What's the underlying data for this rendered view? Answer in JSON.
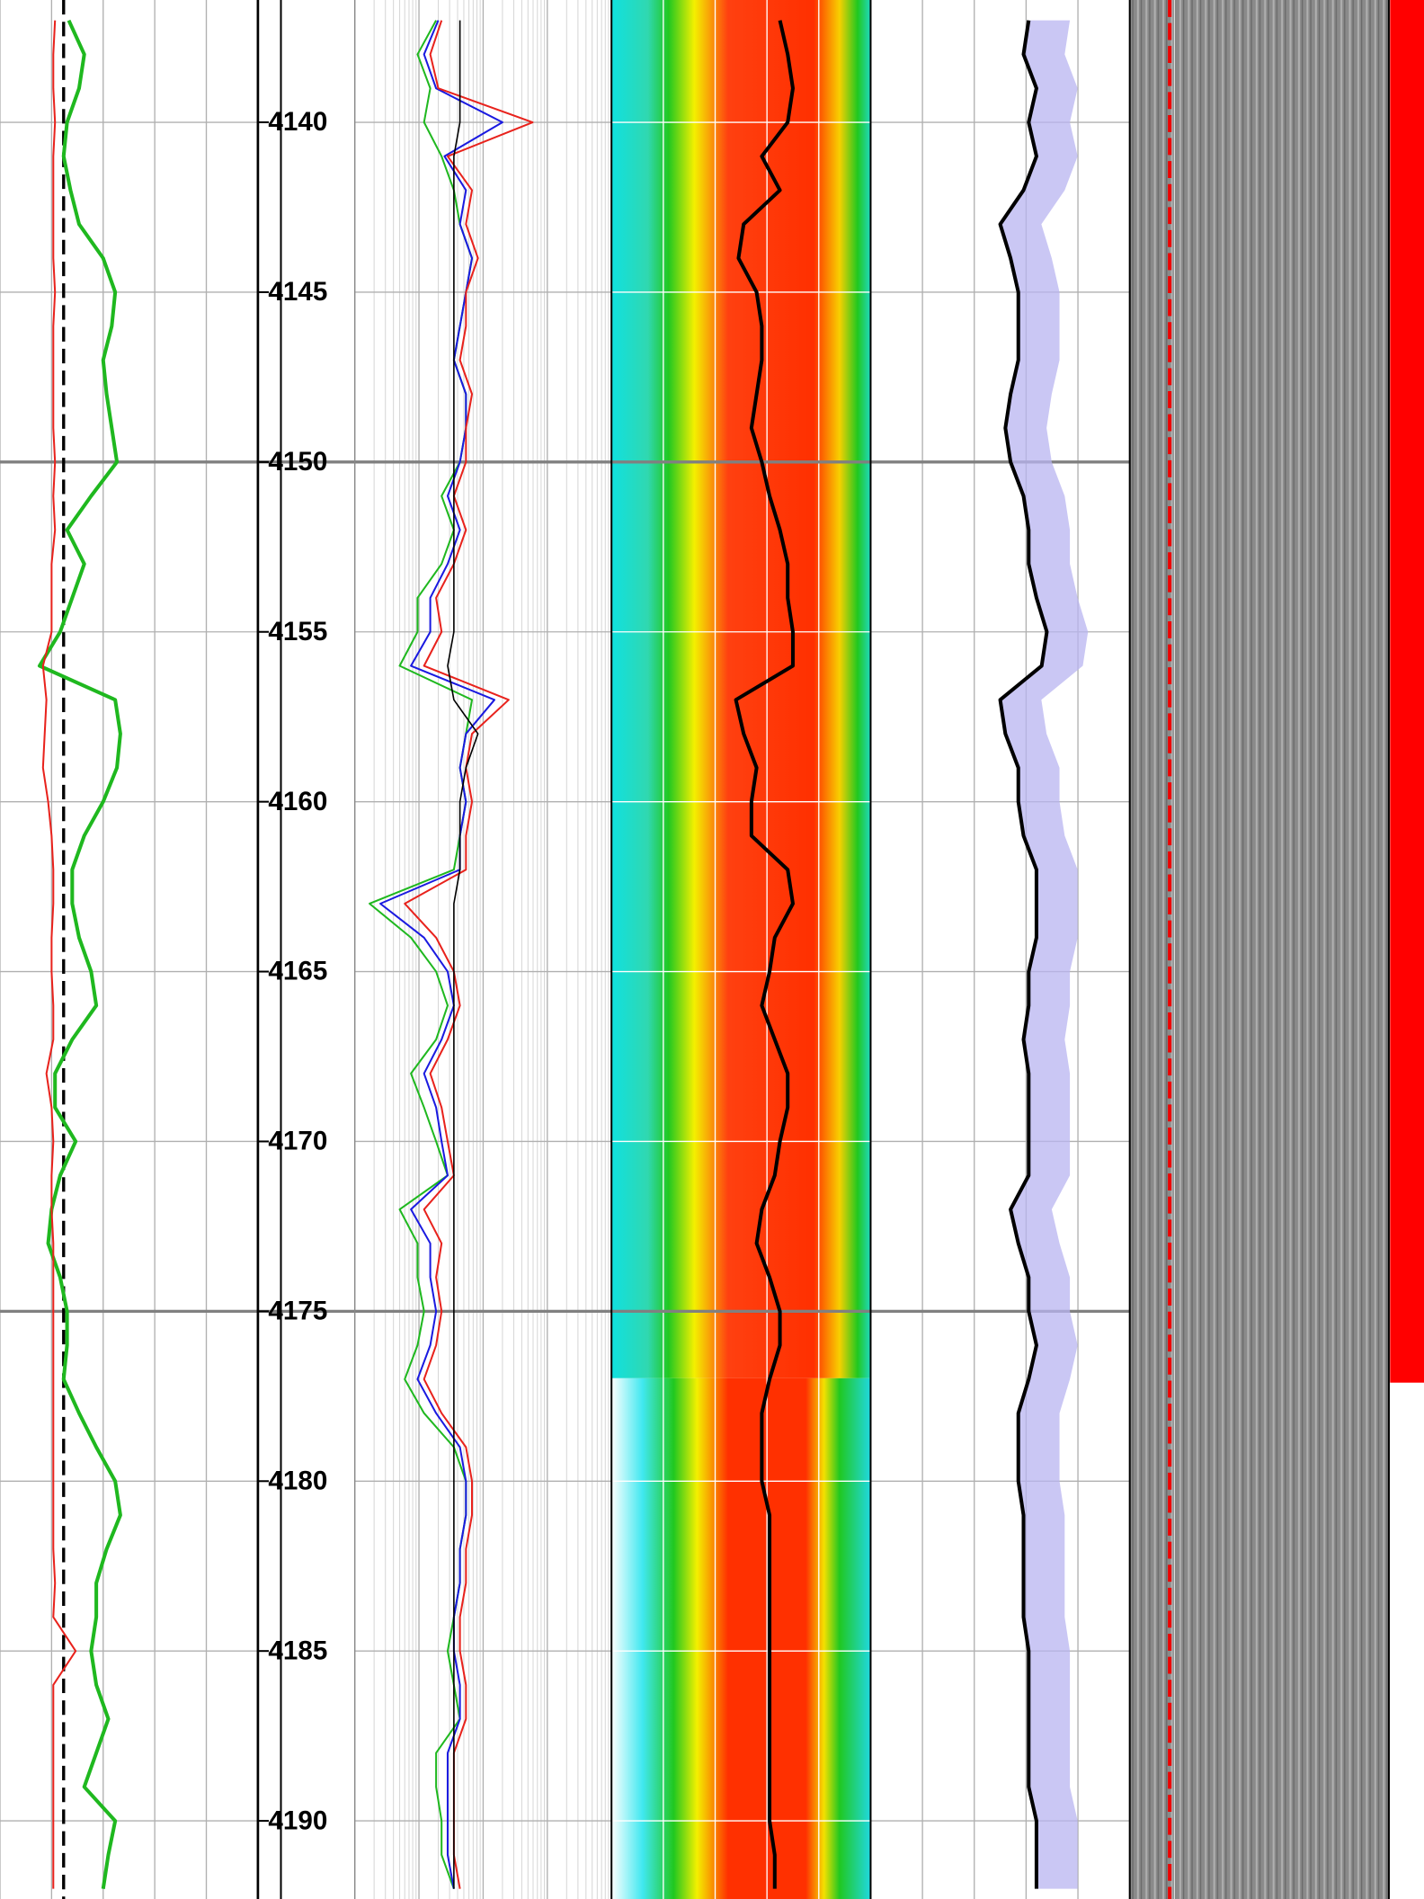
{
  "chart_data": {
    "type": "well-log",
    "ylim": [
      4136.4,
      4192.3
    ],
    "yticks": [
      4140,
      4145,
      4150,
      4155,
      4160,
      4165,
      4170,
      4175,
      4180,
      4185,
      4190
    ],
    "major_lines": [
      4150,
      4175
    ],
    "depths": [
      4137,
      4138,
      4139,
      4140,
      4141,
      4142,
      4143,
      4144,
      4145,
      4146,
      4147,
      4148,
      4149,
      4150,
      4151,
      4152,
      4153,
      4154,
      4155,
      4156,
      4157,
      4158,
      4159,
      4160,
      4161,
      4162,
      4163,
      4164,
      4165,
      4166,
      4167,
      4168,
      4169,
      4170,
      4171,
      4172,
      4173,
      4174,
      4175,
      4176,
      4177,
      4178,
      4179,
      4180,
      4181,
      4182,
      4183,
      4184,
      4185,
      4186,
      4187,
      4188,
      4189,
      4190,
      4191,
      4192
    ],
    "tracks": [
      {
        "scale": "linear",
        "xlim": [
          0,
          150
        ],
        "xticks": [
          0,
          30,
          60,
          90,
          120,
          150
        ],
        "cutoff": 37,
        "series": [
          {
            "color": "#1fb81f",
            "width": 3,
            "values": [
              40,
              49,
              46,
              39,
              37,
              41,
              46,
              60,
              67,
              65,
              60,
              62,
              65,
              68,
              53,
              39,
              49,
              42,
              35,
              23,
              67,
              70,
              68,
              60,
              49,
              42,
              42,
              46,
              53,
              56,
              42,
              32,
              32,
              44,
              35,
              30,
              28,
              35,
              39,
              39,
              37,
              46,
              56,
              67,
              70,
              62,
              56,
              56,
              53,
              56,
              63,
              56,
              49,
              67,
              63,
              60
            ]
          },
          {
            "color": "#e8221c",
            "width": 1.5,
            "values": [
              32,
              31,
              31,
              32,
              31,
              31,
              31,
              31,
              32,
              31,
              31,
              31,
              31,
              32,
              31,
              32,
              30,
              30,
              30,
              25,
              27,
              26,
              25,
              28,
              30,
              31,
              31,
              30,
              30,
              31,
              31,
              27,
              30,
              31,
              30,
              30,
              31,
              31,
              31,
              31,
              31,
              31,
              31,
              31,
              31,
              31,
              32,
              31,
              44,
              31,
              31,
              31,
              31,
              31,
              31,
              31
            ]
          }
        ]
      },
      {
        "scale": "log",
        "xlim": [
          0.2,
          2000
        ],
        "xticks": [
          0.2,
          2,
          20,
          200,
          2000
        ],
        "series": [
          {
            "color": "#1fb81f",
            "width": 1.5,
            "values": [
              3.7,
              1.9,
              3.0,
              2.4,
              4.5,
              7.0,
              8.7,
              13.4,
              10.8,
              8.7,
              7.0,
              10.8,
              10.8,
              8.7,
              4.5,
              7.0,
              4.5,
              1.9,
              1.9,
              1.0,
              13.4,
              10.8,
              8.7,
              10.8,
              8.7,
              7.0,
              0.34,
              1.5,
              3.7,
              5.6,
              3.7,
              1.5,
              2.4,
              3.7,
              5.6,
              1.0,
              1.9,
              1.9,
              2.4,
              1.9,
              1.2,
              2.4,
              7.0,
              10.8,
              10.8,
              8.7,
              8.7,
              7.0,
              5.6,
              7.0,
              8.7,
              3.7,
              3.7,
              4.5,
              4.5,
              7.0
            ]
          },
          {
            "color": "#1a1ae0",
            "width": 1.5,
            "values": [
              4.0,
              2.4,
              3.7,
              40,
              5.0,
              10.8,
              8.7,
              13.4,
              10.8,
              8.7,
              7.0,
              10.8,
              10.8,
              8.7,
              5.6,
              8.7,
              5.6,
              3.0,
              3.0,
              1.5,
              30,
              10.8,
              8.7,
              10.8,
              8.7,
              8.7,
              0.5,
              2.4,
              5.6,
              7.0,
              4.5,
              2.4,
              3.7,
              4.5,
              5.6,
              1.5,
              3.0,
              3.0,
              3.7,
              3.0,
              1.9,
              3.7,
              8.7,
              10.8,
              10.8,
              8.7,
              8.7,
              7.0,
              7.0,
              8.7,
              8.7,
              5.6,
              5.6,
              5.6,
              5.6,
              7.0
            ]
          },
          {
            "color": "#e8221c",
            "width": 1.5,
            "values": [
              4.5,
              3.0,
              4.0,
              118,
              5.6,
              13.4,
              10.8,
              16.6,
              10.8,
              10.8,
              8.7,
              13.4,
              10.8,
              10.8,
              7.0,
              10.8,
              7.0,
              3.7,
              4.5,
              2.4,
              50,
              13.4,
              10.8,
              13.4,
              10.8,
              10.8,
              1.2,
              3.7,
              7.0,
              8.7,
              5.6,
              3.0,
              4.5,
              5.6,
              7.0,
              2.4,
              4.5,
              3.7,
              4.5,
              3.7,
              2.4,
              4.5,
              10.8,
              13.4,
              13.4,
              10.8,
              10.8,
              8.7,
              8.7,
              10.8,
              10.8,
              7.0,
              7.0,
              7.0,
              7.0,
              8.7
            ]
          },
          {
            "color": "#000000",
            "width": 1.2,
            "values": [
              8.7,
              8.7,
              8.7,
              8.7,
              7.0,
              7.0,
              7.0,
              7.0,
              7.0,
              7.0,
              7.0,
              7.0,
              7.0,
              7.0,
              7.0,
              7.0,
              7.0,
              7.0,
              7.0,
              5.6,
              7.0,
              16.6,
              10.8,
              8.7,
              8.7,
              8.7,
              7.0,
              7.0,
              7.0,
              7.0,
              7.0,
              7.0,
              7.0,
              7.0,
              7.0,
              7.0,
              7.0,
              7.0,
              7.0,
              7.0,
              7.0,
              7.0,
              7.0,
              7.0,
              7.0,
              7.0,
              7.0,
              7.0,
              7.0,
              7.0,
              7.0,
              7.0,
              7.0,
              7.0,
              7.0,
              7.0
            ]
          }
        ]
      },
      {
        "scale": "linear",
        "xlim": [
          0,
          100
        ],
        "xticks": [
          0,
          20,
          40,
          60,
          80,
          100
        ],
        "grid_color": "#ffffff",
        "series": [
          {
            "color": "#000000",
            "width": 3,
            "values": [
              65,
              68,
              70,
              68,
              58,
              65,
              51,
              49,
              56,
              58,
              58,
              56,
              54,
              58,
              61,
              65,
              68,
              68,
              70,
              70,
              48,
              51,
              56,
              54,
              54,
              68,
              70,
              63,
              61,
              58,
              63,
              68,
              68,
              65,
              63,
              58,
              56,
              61,
              65,
              65,
              61,
              58,
              58,
              58,
              61,
              61,
              61,
              61,
              61,
              61,
              61,
              61,
              61,
              61,
              63,
              63
            ]
          }
        ]
      },
      {
        "scale": "linear",
        "xlim": [
          0,
          100
        ],
        "xticks": [
          0,
          20,
          40,
          60,
          80,
          100
        ],
        "shade": "#b8b4f0",
        "series": [
          {
            "color": "#000000",
            "width": 3,
            "values": [
              61,
              59,
              64,
              61,
              64,
              59,
              50,
              54,
              57,
              57,
              57,
              54,
              52,
              54,
              59,
              61,
              61,
              64,
              68,
              66,
              50,
              52,
              57,
              57,
              59,
              64,
              64,
              64,
              61,
              61,
              59,
              61,
              61,
              61,
              61,
              54,
              57,
              61,
              61,
              64,
              61,
              57,
              57,
              57,
              59,
              59,
              59,
              59,
              61,
              61,
              61,
              61,
              61,
              64,
              64,
              64
            ]
          }
        ]
      }
    ],
    "flag": {
      "color": "#ff0000",
      "bottom": 4177.1
    }
  }
}
